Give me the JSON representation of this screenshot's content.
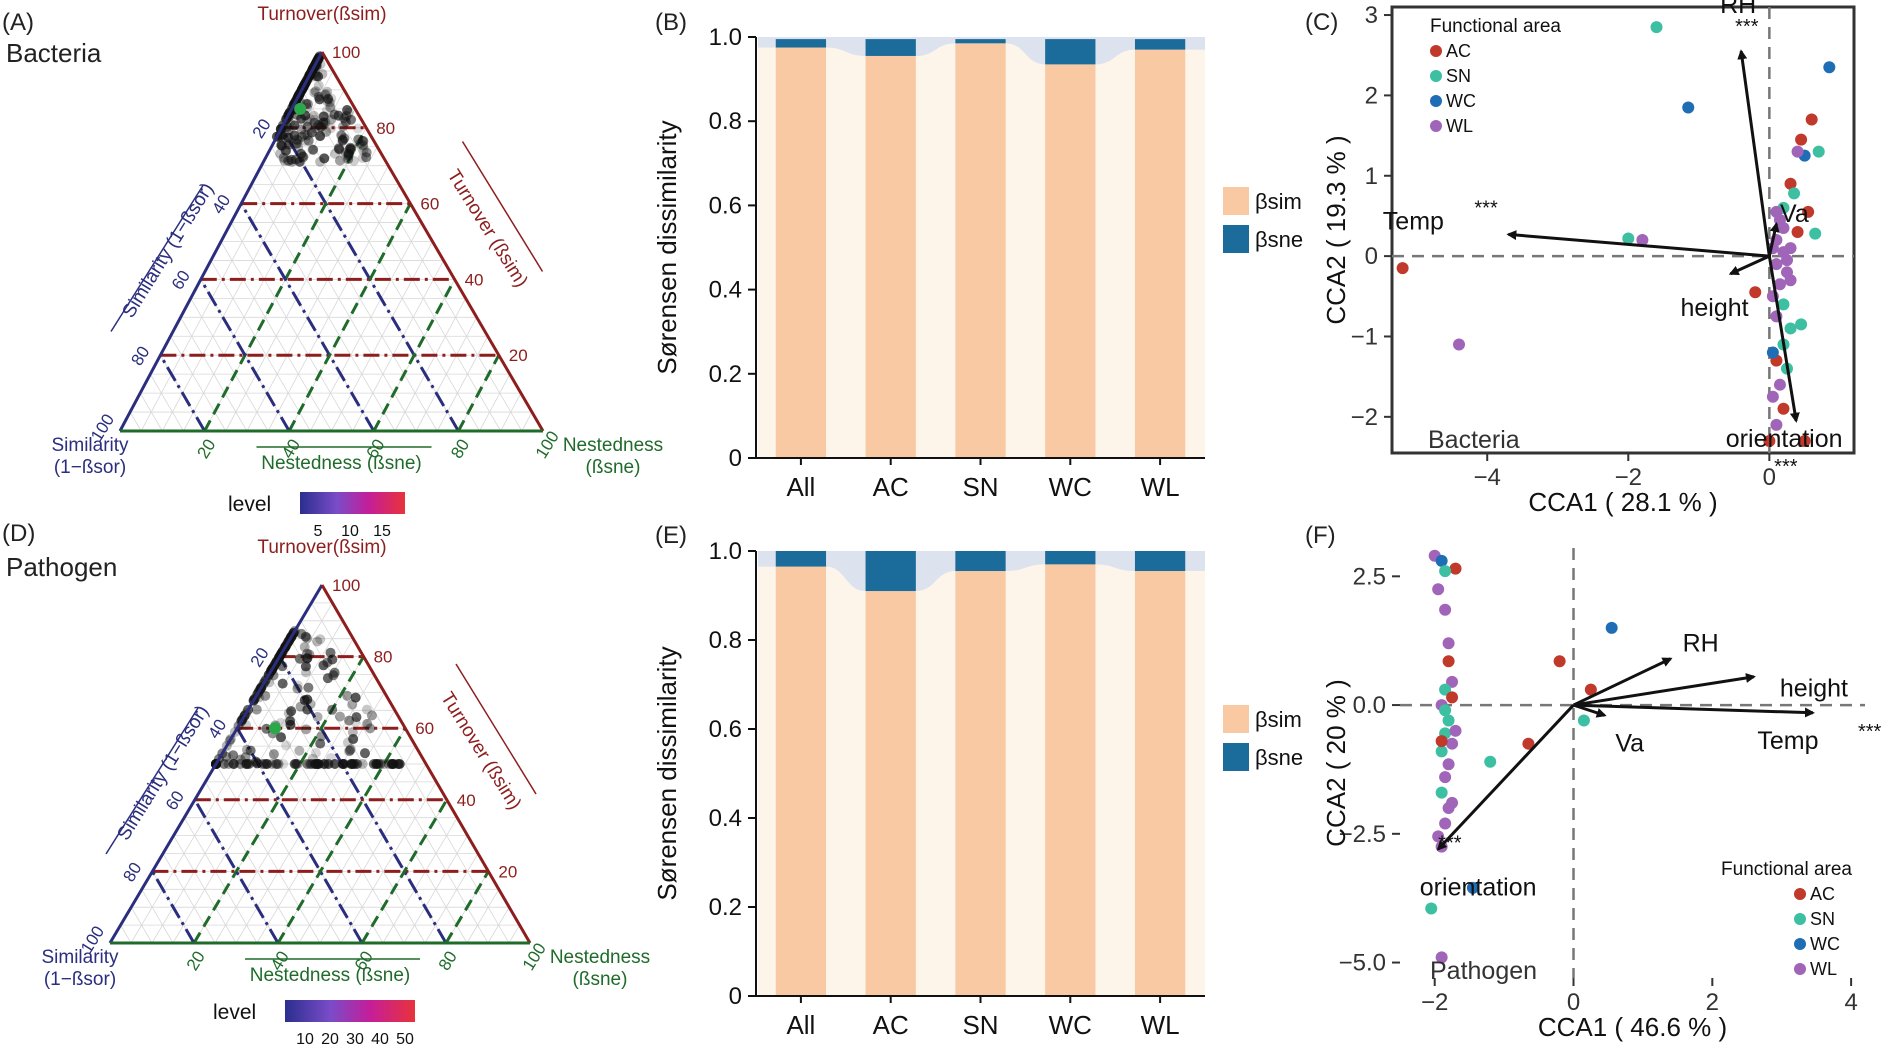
{
  "colors": {
    "bsim": "#F8C9A3",
    "bsne": "#1B6C9A",
    "ribbon": "#DCE2EE",
    "gap": "#FDF4EA",
    "turnover": "#8E1E1E",
    "similarity": "#2B2E7E",
    "nestedness": "#1F6B2A",
    "AC": "#C0392B",
    "SN": "#3DBFA2",
    "WC": "#1F6DB5",
    "WL": "#A065B8",
    "green_dot": "#2BA84A"
  },
  "ternary": [
    {
      "panel": "(A)",
      "name": "Bacteria",
      "top_label": "Turnover(ßsim)",
      "left_axis": "Similarity (1−ßsor)",
      "right_axis": "Turnover (ßsim)",
      "bottom_axis": "Nestedness (ßsne)",
      "left_corner": [
        "Similarity",
        "(1−ßsor)"
      ],
      "right_corner": [
        "Nestedness",
        "(ßsne)"
      ],
      "ticks": [
        "20",
        "40",
        "60",
        "80",
        "100"
      ],
      "level_label": "level",
      "level_ticks": [
        "5",
        "10",
        "15"
      ],
      "mean_point": {
        "turnover": 85,
        "similarity": 13,
        "nestedness": 2
      }
    },
    {
      "panel": "(D)",
      "name": "Pathogen",
      "top_label": "Turnover(ßsim)",
      "left_axis": "Similarity (1−ßsor)",
      "right_axis": "Turnover (ßsim)",
      "bottom_axis": "Nestedness (ßsne)",
      "left_corner": [
        "Similarity",
        "(1−ßsor)"
      ],
      "right_corner": [
        "Nestedness",
        "(ßsne)"
      ],
      "ticks": [
        "20",
        "40",
        "60",
        "80",
        "100"
      ],
      "level_label": "level",
      "level_ticks": [
        "10",
        "20",
        "30",
        "40",
        "50"
      ],
      "mean_point": {
        "turnover": 60,
        "similarity": 31,
        "nestedness": 9
      }
    }
  ],
  "chart_data": [
    {
      "type": "bar",
      "panel": "(B)",
      "ylabel": "Sørensen dissimilarity",
      "categories": [
        "All",
        "AC",
        "SN",
        "WC",
        "WL"
      ],
      "ylim": [
        0,
        1.0
      ],
      "yticks": [
        "0",
        "0.2",
        "0.4",
        "0.6",
        "0.8",
        "1.0"
      ],
      "series": [
        {
          "name": "βsim",
          "values": [
            0.975,
            0.955,
            0.985,
            0.935,
            0.97
          ]
        },
        {
          "name": "βsne",
          "values": [
            0.02,
            0.04,
            0.01,
            0.06,
            0.025
          ]
        }
      ],
      "legend": [
        "βsim",
        "βsne"
      ]
    },
    {
      "type": "bar",
      "panel": "(E)",
      "ylabel": "Sørensen dissimilarity",
      "categories": [
        "All",
        "AC",
        "SN",
        "WC",
        "WL"
      ],
      "ylim": [
        0,
        1.0
      ],
      "yticks": [
        "0",
        "0.2",
        "0.4",
        "0.6",
        "0.8",
        "1.0"
      ],
      "series": [
        {
          "name": "βsim",
          "values": [
            0.965,
            0.91,
            0.955,
            0.97,
            0.955
          ]
        },
        {
          "name": "βsne",
          "values": [
            0.035,
            0.09,
            0.045,
            0.03,
            0.045
          ]
        }
      ],
      "legend": [
        "βsim",
        "βsne"
      ]
    },
    {
      "type": "scatter",
      "panel": "(C)",
      "name": "Bacteria",
      "xlabel": "CCA1 ( 28.1 % )",
      "ylabel": "CCA2 ( 19.3 % )",
      "xlim": [
        -5.35,
        1.2
      ],
      "ylim": [
        -2.45,
        3.1
      ],
      "xticks": [
        -4,
        -2,
        0
      ],
      "xtick_labels": [
        "−4",
        "−2",
        "0"
      ],
      "yticks": [
        -2,
        -1,
        0,
        1,
        2,
        3
      ],
      "ytick_labels": [
        "−2",
        "−1",
        "0",
        "1",
        "2",
        "3"
      ],
      "legend_title": "Functional area",
      "groups": [
        "AC",
        "SN",
        "WC",
        "WL"
      ],
      "arrows": [
        {
          "label": "RH",
          "sig": "***",
          "x": -0.4,
          "y": 2.55
        },
        {
          "label": "Temp",
          "sig": "***",
          "x": -3.7,
          "y": 0.27
        },
        {
          "label": "height",
          "sig": "",
          "x": -0.55,
          "y": -0.22
        },
        {
          "label": "Va",
          "sig": "",
          "x": 0.1,
          "y": 0.4
        },
        {
          "label": "orientation",
          "sig": "***",
          "x": 0.38,
          "y": -2.05
        }
      ],
      "points": [
        {
          "x": -5.2,
          "y": -0.15,
          "g": "AC"
        },
        {
          "x": -4.4,
          "y": -1.1,
          "g": "WL"
        },
        {
          "x": -1.6,
          "y": 2.85,
          "g": "SN"
        },
        {
          "x": -1.15,
          "y": 1.85,
          "g": "WC"
        },
        {
          "x": -2.0,
          "y": 0.22,
          "g": "SN"
        },
        {
          "x": -1.8,
          "y": 0.2,
          "g": "WL"
        },
        {
          "x": -0.2,
          "y": -0.45,
          "g": "AC"
        },
        {
          "x": 0.85,
          "y": 2.35,
          "g": "WC"
        },
        {
          "x": 0.6,
          "y": 1.7,
          "g": "AC"
        },
        {
          "x": 0.7,
          "y": 1.3,
          "g": "SN"
        },
        {
          "x": 0.45,
          "y": 1.45,
          "g": "AC"
        },
        {
          "x": 0.5,
          "y": 1.25,
          "g": "WC"
        },
        {
          "x": 0.4,
          "y": 1.3,
          "g": "WL"
        },
        {
          "x": 0.3,
          "y": 0.9,
          "g": "AC"
        },
        {
          "x": 0.35,
          "y": 0.78,
          "g": "SN"
        },
        {
          "x": 0.55,
          "y": 0.55,
          "g": "AC"
        },
        {
          "x": 0.65,
          "y": 0.28,
          "g": "SN"
        },
        {
          "x": 0.4,
          "y": 0.3,
          "g": "AC"
        },
        {
          "x": 0.2,
          "y": 0.6,
          "g": "SN"
        },
        {
          "x": 0.15,
          "y": 0.45,
          "g": "WL"
        },
        {
          "x": 0.1,
          "y": 0.2,
          "g": "WL"
        },
        {
          "x": 0.2,
          "y": 0.05,
          "g": "WL"
        },
        {
          "x": 0.1,
          "y": -0.1,
          "g": "WL"
        },
        {
          "x": 0.25,
          "y": -0.2,
          "g": "WL"
        },
        {
          "x": 0.15,
          "y": -0.35,
          "g": "WL"
        },
        {
          "x": 0.05,
          "y": -0.5,
          "g": "WL"
        },
        {
          "x": 0.2,
          "y": -0.6,
          "g": "SN"
        },
        {
          "x": 0.1,
          "y": -0.75,
          "g": "WL"
        },
        {
          "x": 0.3,
          "y": -0.9,
          "g": "SN"
        },
        {
          "x": 0.45,
          "y": -0.85,
          "g": "SN"
        },
        {
          "x": 0.2,
          "y": -1.1,
          "g": "SN"
        },
        {
          "x": 0.1,
          "y": -1.3,
          "g": "AC"
        },
        {
          "x": 0.25,
          "y": -1.4,
          "g": "SN"
        },
        {
          "x": 0.15,
          "y": -1.6,
          "g": "WL"
        },
        {
          "x": 0.05,
          "y": -1.75,
          "g": "WL"
        },
        {
          "x": 0.2,
          "y": -1.9,
          "g": "AC"
        },
        {
          "x": 0.1,
          "y": -2.1,
          "g": "WL"
        },
        {
          "x": 0.0,
          "y": -2.3,
          "g": "AC"
        },
        {
          "x": 0.5,
          "y": -2.3,
          "g": "AC"
        },
        {
          "x": 0.3,
          "y": -0.3,
          "g": "WL"
        },
        {
          "x": 0.2,
          "y": 0.35,
          "g": "WL"
        },
        {
          "x": 0.05,
          "y": -1.2,
          "g": "WC"
        },
        {
          "x": 0.3,
          "y": 0.1,
          "g": "WL"
        },
        {
          "x": 0.05,
          "y": 0.1,
          "g": "WL"
        },
        {
          "x": 0.25,
          "y": -0.05,
          "g": "WL"
        },
        {
          "x": 0.1,
          "y": 0.55,
          "g": "WL"
        }
      ]
    },
    {
      "type": "scatter",
      "panel": "(F)",
      "name": "Pathogen",
      "xlabel": "CCA1 ( 46.6 % )",
      "ylabel": "CCA2 ( 20 % )",
      "xlim": [
        -2.5,
        4.2
      ],
      "ylim": [
        -5.3,
        3.05
      ],
      "xticks": [
        -2,
        0,
        2,
        4
      ],
      "xtick_labels": [
        "−2",
        "0",
        "2",
        "4"
      ],
      "yticks": [
        -5,
        -2.5,
        0,
        2.5
      ],
      "ytick_labels": [
        "−5.0",
        "−2.5",
        "0.0",
        "2.5"
      ],
      "legend_title": "Functional area",
      "groups": [
        "AC",
        "SN",
        "WC",
        "WL"
      ],
      "arrows": [
        {
          "label": "RH",
          "sig": "",
          "x": 1.4,
          "y": 0.9
        },
        {
          "label": "height",
          "sig": "",
          "x": 2.6,
          "y": 0.55
        },
        {
          "label": "Temp",
          "sig": "***",
          "x": 3.45,
          "y": -0.15
        },
        {
          "label": "Va",
          "sig": "",
          "x": 0.45,
          "y": -0.2
        },
        {
          "label": "orientation",
          "sig": "***",
          "x": -1.95,
          "y": -2.8
        }
      ],
      "points": [
        {
          "x": -2.0,
          "y": 2.9,
          "g": "WL"
        },
        {
          "x": -1.9,
          "y": 2.8,
          "g": "WC"
        },
        {
          "x": -1.7,
          "y": 2.65,
          "g": "AC"
        },
        {
          "x": -1.85,
          "y": 2.6,
          "g": "SN"
        },
        {
          "x": -1.95,
          "y": 2.25,
          "g": "WL"
        },
        {
          "x": -1.85,
          "y": 1.85,
          "g": "WL"
        },
        {
          "x": -1.8,
          "y": 0.85,
          "g": "AC"
        },
        {
          "x": -1.75,
          "y": 0.45,
          "g": "WL"
        },
        {
          "x": -1.85,
          "y": 0.3,
          "g": "SN"
        },
        {
          "x": -1.9,
          "y": 0.0,
          "g": "WL"
        },
        {
          "x": -1.8,
          "y": -0.3,
          "g": "SN"
        },
        {
          "x": -1.85,
          "y": -0.55,
          "g": "SN"
        },
        {
          "x": -1.75,
          "y": -0.75,
          "g": "WL"
        },
        {
          "x": -1.9,
          "y": -0.9,
          "g": "SN"
        },
        {
          "x": -1.8,
          "y": -1.15,
          "g": "WL"
        },
        {
          "x": -1.85,
          "y": -1.4,
          "g": "WL"
        },
        {
          "x": -1.9,
          "y": -1.7,
          "g": "SN"
        },
        {
          "x": -1.8,
          "y": -2.0,
          "g": "WL"
        },
        {
          "x": -1.85,
          "y": -2.3,
          "g": "WL"
        },
        {
          "x": -1.95,
          "y": -2.55,
          "g": "WL"
        },
        {
          "x": -1.9,
          "y": -2.75,
          "g": "WL"
        },
        {
          "x": -2.05,
          "y": -3.95,
          "g": "SN"
        },
        {
          "x": -1.45,
          "y": -3.55,
          "g": "WC"
        },
        {
          "x": -1.2,
          "y": -1.1,
          "g": "SN"
        },
        {
          "x": -0.65,
          "y": -0.75,
          "g": "AC"
        },
        {
          "x": -0.2,
          "y": 0.85,
          "g": "AC"
        },
        {
          "x": 0.55,
          "y": 1.5,
          "g": "WC"
        },
        {
          "x": 0.25,
          "y": 0.3,
          "g": "AC"
        },
        {
          "x": 0.15,
          "y": -0.3,
          "g": "SN"
        },
        {
          "x": -1.9,
          "y": -4.9,
          "g": "WL"
        },
        {
          "x": -1.75,
          "y": 0.15,
          "g": "AC"
        },
        {
          "x": -1.85,
          "y": -0.1,
          "g": "SN"
        },
        {
          "x": -1.7,
          "y": -0.5,
          "g": "WL"
        },
        {
          "x": -1.8,
          "y": 1.2,
          "g": "WL"
        },
        {
          "x": -1.75,
          "y": -1.9,
          "g": "WL"
        },
        {
          "x": -1.9,
          "y": -0.7,
          "g": "AC"
        }
      ]
    }
  ]
}
